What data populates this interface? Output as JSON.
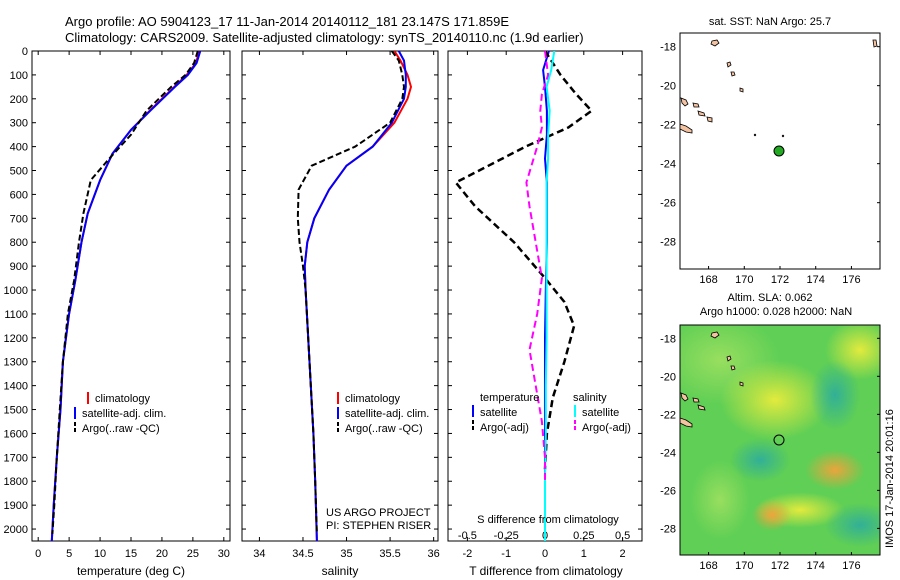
{
  "title_line1": "Argo profile: AO 5904123_17 11-Jan-2014 20140112_181 23.147S 171.859E",
  "title_line2": "Climatology: CARS2009. Satellite-adjusted climatology: synTS_20140110.nc (1.9d earlier)",
  "colors": {
    "climatology": "#ff0000",
    "satellite": "#0000ff",
    "argo": "#000000",
    "sal_satellite": "#00ffff",
    "sal_argo": "#ff00ff",
    "map_land": "#f3c2a0",
    "map_marker": "#22aa22"
  },
  "depth_axis": {
    "ticks": [
      0,
      100,
      200,
      300,
      400,
      500,
      600,
      700,
      800,
      900,
      1000,
      1100,
      1200,
      1300,
      1400,
      1500,
      1600,
      1700,
      1800,
      1900,
      2000
    ],
    "ylim": [
      0,
      2050
    ]
  },
  "temp_panel": {
    "xlabel": "temperature (deg C)",
    "xticks": [
      0,
      5,
      10,
      15,
      20,
      25,
      30
    ],
    "legend": [
      "climatology",
      "satellite-adj. clim.",
      "Argo(..raw -QC)"
    ]
  },
  "sal_panel": {
    "xlabel": "salinity",
    "xticks": [
      "34",
      "34.5",
      "35",
      "35.5",
      "36"
    ],
    "legend": [
      "climatology",
      "satellite-adj. clim.",
      "Argo(..raw -QC)"
    ],
    "credit1": "US ARGO PROJECT",
    "credit2": "PI: STEPHEN RISER"
  },
  "diff_panel": {
    "xlabel": "T difference from climatology",
    "xlabel_top": "S difference from climatology",
    "t_ticks": [
      "-2",
      "-1",
      "0",
      "1",
      "2"
    ],
    "s_ticks": [
      "-0.5",
      "-0.25",
      "0",
      "0.25",
      "0.5"
    ],
    "legend_temperature": "temperature",
    "legend_salinity": "salinity",
    "legend_t_sat": "satellite",
    "legend_t_argo": "Argo(-adj)",
    "legend_s_sat": "satellite",
    "legend_s_argo": "Argo(-adj)"
  },
  "map1": {
    "title": "sat. SST: NaN Argo: 25.7",
    "xticks": [
      "168",
      "170",
      "172",
      "174",
      "176"
    ],
    "yticks": [
      "-18",
      "-20",
      "-22",
      "-24",
      "-26",
      "-28"
    ]
  },
  "map2": {
    "title1": "Altim. SLA: 0.062",
    "title2": "Argo h1000: 0.028 h2000: NaN",
    "xticks": [
      "168",
      "170",
      "172",
      "174",
      "176"
    ],
    "yticks": [
      "-18",
      "-20",
      "-22",
      "-24",
      "-26",
      "-28"
    ]
  },
  "side_label": "IMOS 17-Jan-2014 20:01:16",
  "chart_data": [
    {
      "type": "line",
      "xlabel": "temperature (deg C)",
      "ylabel": "",
      "xlim": [
        -1,
        31
      ],
      "ylim": [
        2050,
        0
      ],
      "series": [
        {
          "name": "climatology",
          "x": [
            26,
            25.5,
            24,
            22,
            20,
            18,
            15,
            12,
            10,
            8,
            7,
            6,
            5,
            4,
            3.6,
            3,
            2.5,
            2.2
          ],
          "y": [
            0,
            50,
            100,
            150,
            200,
            250,
            330,
            430,
            540,
            680,
            800,
            960,
            1100,
            1300,
            1500,
            1700,
            1900,
            2050
          ]
        },
        {
          "name": "satellite-adj. clim.",
          "x": [
            26.2,
            25.6,
            24.2,
            22.1,
            20.1,
            18.1,
            15,
            12,
            10,
            8,
            7,
            6,
            5,
            4,
            3.6,
            3,
            2.5,
            2.2
          ],
          "y": [
            0,
            50,
            100,
            150,
            200,
            250,
            330,
            430,
            540,
            680,
            800,
            960,
            1100,
            1300,
            1500,
            1700,
            1900,
            2050
          ]
        },
        {
          "name": "Argo(..raw -QC)",
          "x": [
            25.8,
            25.2,
            23.8,
            21.5,
            19.5,
            17.5,
            15,
            11.5,
            8.5,
            7.3,
            6.6,
            5.8,
            4.8,
            4,
            3.5,
            3,
            2.6,
            2.3
          ],
          "y": [
            0,
            50,
            100,
            150,
            200,
            250,
            350,
            450,
            540,
            680,
            800,
            960,
            1100,
            1300,
            1500,
            1700,
            1900,
            2020
          ]
        }
      ]
    },
    {
      "type": "line",
      "xlabel": "salinity",
      "ylabel": "",
      "xlim": [
        33.8,
        36.05
      ],
      "ylim": [
        2050,
        0
      ],
      "series": [
        {
          "name": "climatology",
          "x": [
            35.55,
            35.62,
            35.7,
            35.74,
            35.7,
            35.55,
            35.3,
            35.0,
            34.8,
            34.63,
            34.55,
            34.52,
            34.53,
            34.56,
            34.59,
            34.62,
            34.64,
            34.66
          ],
          "y": [
            0,
            40,
            100,
            150,
            200,
            300,
            400,
            480,
            580,
            700,
            800,
            900,
            1000,
            1200,
            1400,
            1600,
            1800,
            2050
          ]
        },
        {
          "name": "satellite-adj. clim.",
          "x": [
            35.6,
            35.66,
            35.68,
            35.68,
            35.66,
            35.52,
            35.3,
            35.0,
            34.8,
            34.63,
            34.55,
            34.52,
            34.53,
            34.56,
            34.59,
            34.62,
            34.64,
            34.66
          ],
          "y": [
            0,
            40,
            100,
            150,
            200,
            300,
            400,
            480,
            580,
            700,
            800,
            900,
            1000,
            1200,
            1400,
            1600,
            1800,
            2050
          ]
        },
        {
          "name": "Argo(..raw -QC)",
          "x": [
            35.52,
            35.6,
            35.64,
            35.66,
            35.64,
            35.5,
            35.1,
            34.6,
            34.45,
            34.44,
            34.46,
            34.5,
            34.53,
            34.56,
            34.59,
            34.62,
            34.64,
            34.66
          ],
          "y": [
            0,
            40,
            100,
            150,
            200,
            300,
            400,
            480,
            580,
            700,
            800,
            900,
            1000,
            1200,
            1400,
            1600,
            1800,
            2020
          ]
        }
      ]
    },
    {
      "type": "line",
      "xlabel": "T difference from climatology",
      "xlabel_top": "S difference from climatology",
      "xlim": [
        -2.5,
        2.5
      ],
      "ylim": [
        2050,
        0
      ],
      "series": [
        {
          "name": "temperature satellite",
          "x": [
            0.1,
            -0.05,
            0,
            0.05,
            0.05,
            0,
            0.05,
            0.05,
            0.05,
            0.02,
            0,
            0,
            0,
            0,
            0,
            0
          ],
          "y": [
            0,
            80,
            150,
            250,
            350,
            450,
            550,
            650,
            800,
            1000,
            1200,
            1400,
            1600,
            1800,
            1950,
            2050
          ]
        },
        {
          "name": "temperature Argo(-adj)",
          "x": [
            0,
            0.4,
            0.8,
            1.2,
            0.6,
            -0.5,
            -2.3,
            -1.8,
            -0.8,
            0,
            0.5,
            0.75,
            0.5,
            0.2,
            0.05,
            0
          ],
          "y": [
            0,
            100,
            180,
            250,
            320,
            400,
            550,
            650,
            800,
            950,
            1050,
            1150,
            1300,
            1450,
            1600,
            1750
          ]
        },
        {
          "name": "salinity satellite",
          "x": [
            0.06,
            0.04,
            0.01,
            0.03,
            0.02,
            0.02,
            0.01,
            0.01,
            0.01,
            0.01,
            0.01,
            0.005,
            0.005,
            0,
            0,
            0
          ],
          "y": [
            0,
            80,
            150,
            250,
            350,
            450,
            550,
            650,
            800,
            1000,
            1200,
            1400,
            1600,
            1800,
            1950,
            2050
          ]
        },
        {
          "name": "salinity Argo(-adj)",
          "x": [
            0,
            0.02,
            -0.02,
            -0.03,
            -0.02,
            -0.05,
            -0.12,
            -0.1,
            -0.06,
            -0.02,
            -0.05,
            -0.1,
            -0.06,
            -0.02,
            0,
            0
          ],
          "y": [
            0,
            100,
            180,
            250,
            320,
            400,
            550,
            650,
            800,
            950,
            1100,
            1250,
            1400,
            1550,
            1700,
            1800
          ]
        }
      ]
    }
  ]
}
